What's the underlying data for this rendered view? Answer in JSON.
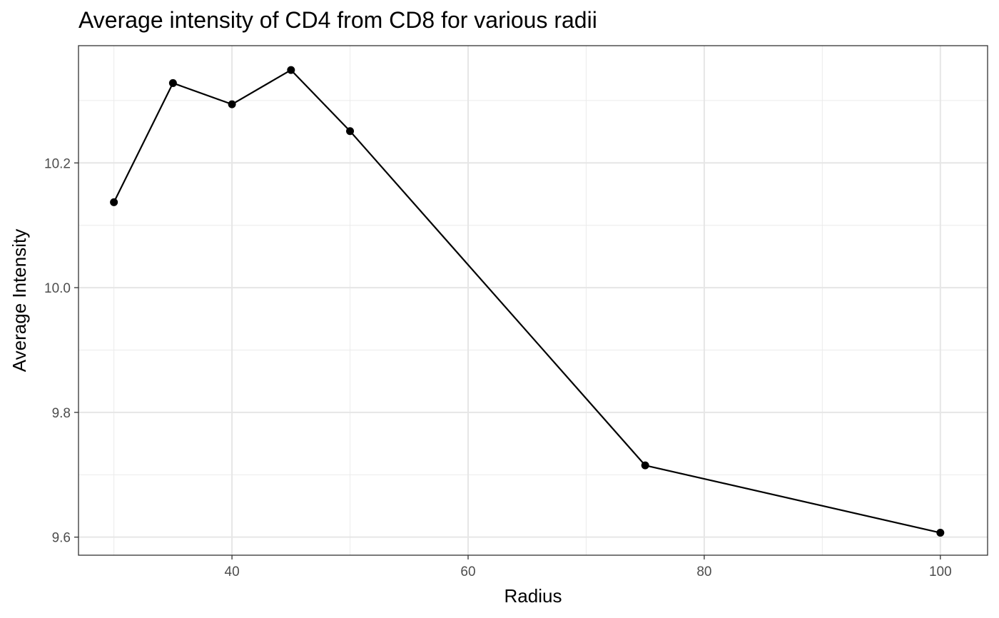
{
  "chart_data": {
    "type": "line",
    "title": "Average intensity of CD4 from CD8 for various radii",
    "xlabel": "Radius",
    "ylabel": "Average Intensity",
    "xlim": [
      27,
      104
    ],
    "ylim": [
      9.571,
      10.388
    ],
    "x_ticks": [
      40,
      60,
      80,
      100
    ],
    "x_tick_labels": [
      "40",
      "60",
      "80",
      "100"
    ],
    "x_minor_ticks": [
      30,
      50,
      70,
      90
    ],
    "y_ticks": [
      9.6,
      9.8,
      10.0,
      10.2
    ],
    "y_tick_labels": [
      "9.6",
      "9.8",
      "10.0",
      "10.2"
    ],
    "y_minor_ticks": [
      9.7,
      9.9,
      10.1,
      10.3
    ],
    "grid": true,
    "legend": "none",
    "series": [
      {
        "x": [
          30,
          35,
          40,
          45,
          50,
          75,
          100
        ],
        "values": [
          10.137,
          10.328,
          10.294,
          10.349,
          10.251,
          9.715,
          9.607
        ],
        "color": "#000000"
      }
    ]
  }
}
